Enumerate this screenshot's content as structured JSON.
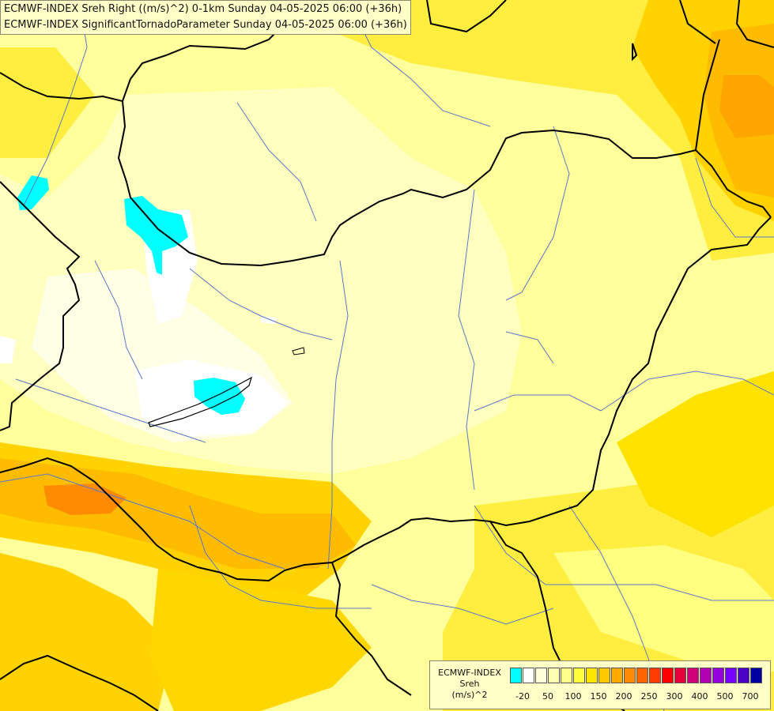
{
  "title": {
    "line1": "ECMWF-INDEX Sreh Right ((m/s)^2) 0-1km Sunday 04-05-2025 06:00 (+36h)",
    "line2": "ECMWF-INDEX SignificantTornadoParameter Sunday 04-05-2025 06:00 (+36h)"
  },
  "legend": {
    "line1": "ECMWF-INDEX",
    "line2": "Sreh",
    "line3": "(m/s)^2",
    "colors": [
      "#00ffff",
      "#ffffff",
      "#ffffdc",
      "#ffffb4",
      "#ffff8c",
      "#ffff3c",
      "#ffe600",
      "#ffc800",
      "#ffaa00",
      "#ff8c00",
      "#ff6400",
      "#ff3c00",
      "#ff0000",
      "#e6003c",
      "#d20078",
      "#b400b4",
      "#9600dc",
      "#7800ff",
      "#4b00c8",
      "#0000a0"
    ],
    "tick_labels": [
      "-20",
      "50",
      "100",
      "150",
      "200",
      "250",
      "300",
      "400",
      "500",
      "700"
    ]
  },
  "map": {
    "background_color": "#ffff9c",
    "border_color": "#000000",
    "river_color": "#5a78c8"
  }
}
